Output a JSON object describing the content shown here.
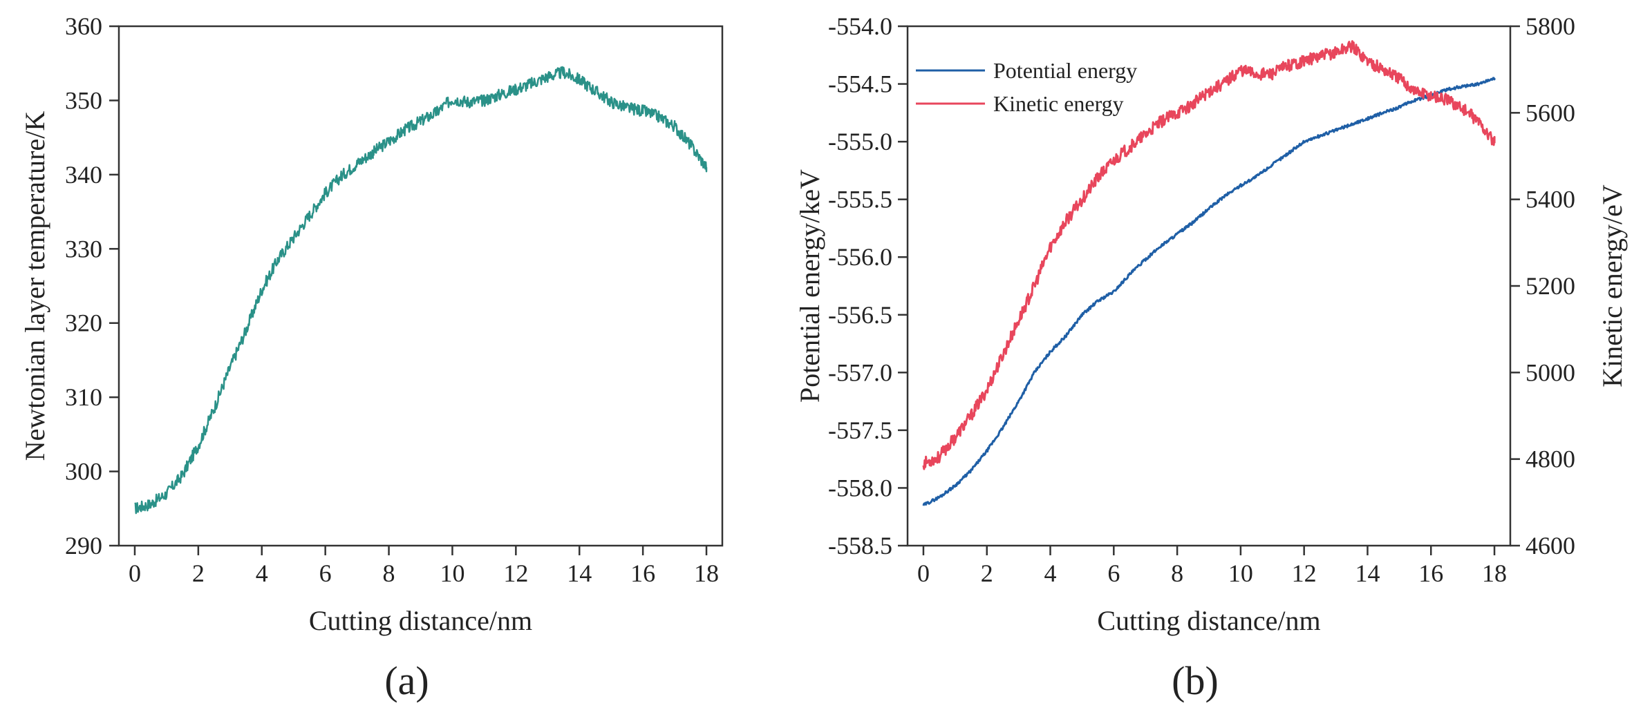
{
  "figure": {
    "panel_a_label": "(a)",
    "panel_b_label": "(b)"
  },
  "chart_data": [
    {
      "type": "line",
      "panel": "a",
      "title": "",
      "xlabel": "Cutting distance/nm",
      "ylabel": "Newtonian layer temperature/K",
      "xlim": [
        -0.5,
        18.5
      ],
      "ylim": [
        290,
        360
      ],
      "xticks": [
        "0",
        "2",
        "4",
        "6",
        "8",
        "10",
        "12",
        "14",
        "16",
        "18"
      ],
      "yticks": [
        "290",
        "300",
        "310",
        "320",
        "330",
        "340",
        "350",
        "360"
      ],
      "grid": false,
      "legend": "none",
      "color": "#2a9188",
      "series": [
        {
          "x": [
            0,
            0.5,
            1,
            1.5,
            2,
            2.5,
            3,
            3.5,
            4,
            4.5,
            5,
            5.5,
            6,
            6.5,
            7,
            7.5,
            8,
            8.5,
            9,
            9.5,
            10,
            10.5,
            11,
            11.5,
            12,
            12.5,
            13,
            13.5,
            14,
            14.5,
            15,
            15.5,
            16,
            16.5,
            17,
            17.5,
            18
          ],
          "y": [
            295,
            295.6,
            297,
            299.5,
            303.5,
            308.5,
            314,
            319,
            324.5,
            328.5,
            331.5,
            334.5,
            337.5,
            339.8,
            341.5,
            343,
            344.5,
            346,
            347.2,
            348.4,
            350.2,
            349.8,
            350,
            350.8,
            351.5,
            352.3,
            353.2,
            353.8,
            352.8,
            351.3,
            349.8,
            349,
            348.6,
            347.8,
            346.5,
            344,
            341
          ]
        }
      ]
    },
    {
      "type": "line",
      "panel": "b",
      "title": "",
      "xlabel": "Cutting distance/nm",
      "ylabel": "Potential energy/keV",
      "ylabel_right": "Kinetic energy/eV",
      "xlim": [
        -0.5,
        18.5
      ],
      "ylim": [
        -558.5,
        -554.0
      ],
      "ylim_right": [
        4600,
        5800
      ],
      "xticks": [
        "0",
        "2",
        "4",
        "6",
        "8",
        "10",
        "12",
        "14",
        "16",
        "18"
      ],
      "yticks": [
        "-554.0",
        "-554.5",
        "-555.0",
        "-555.5",
        "-556.0",
        "-556.5",
        "-557.0",
        "-557.5",
        "-558.0",
        "-558.5"
      ],
      "yticks_right": [
        "4600",
        "4800",
        "5000",
        "5200",
        "5400",
        "5600",
        "5800"
      ],
      "grid": false,
      "legend": "top-left",
      "series": [
        {
          "name": "Potential energy",
          "axis": "left",
          "color": "#1f5fa6",
          "x": [
            0,
            0.5,
            1,
            1.5,
            2,
            2.5,
            3,
            3.5,
            4,
            4.5,
            5,
            5.5,
            6,
            6.5,
            7,
            7.5,
            8,
            8.5,
            9,
            9.5,
            10,
            10.5,
            11,
            11.5,
            12,
            12.5,
            13,
            13.5,
            14,
            14.5,
            15,
            15.5,
            16,
            16.5,
            17,
            17.5,
            18
          ],
          "y": [
            -558.15,
            -558.08,
            -557.98,
            -557.85,
            -557.68,
            -557.48,
            -557.25,
            -557.0,
            -556.82,
            -556.68,
            -556.5,
            -556.38,
            -556.3,
            -556.15,
            -556.02,
            -555.9,
            -555.8,
            -555.7,
            -555.58,
            -555.47,
            -555.38,
            -555.3,
            -555.2,
            -555.1,
            -555.0,
            -554.95,
            -554.9,
            -554.85,
            -554.8,
            -554.75,
            -554.7,
            -554.64,
            -554.6,
            -554.55,
            -554.52,
            -554.5,
            -554.45
          ]
        },
        {
          "name": "Kinetic energy",
          "axis": "right",
          "color": "#e8465c",
          "x": [
            0,
            0.5,
            1,
            1.5,
            2,
            2.5,
            3,
            3.5,
            4,
            4.5,
            5,
            5.5,
            6,
            6.5,
            7,
            7.5,
            8,
            8.5,
            9,
            9.5,
            10,
            10.5,
            11,
            11.5,
            12,
            12.5,
            13,
            13.5,
            14,
            14.5,
            15,
            15.5,
            16,
            16.5,
            17,
            17.5,
            18
          ],
          "y": [
            4790,
            4805,
            4850,
            4900,
            4960,
            5040,
            5120,
            5200,
            5290,
            5350,
            5400,
            5450,
            5490,
            5520,
            5550,
            5580,
            5600,
            5620,
            5650,
            5670,
            5700,
            5690,
            5690,
            5710,
            5720,
            5730,
            5740,
            5755,
            5720,
            5700,
            5680,
            5650,
            5640,
            5630,
            5610,
            5580,
            5530
          ]
        }
      ]
    }
  ]
}
